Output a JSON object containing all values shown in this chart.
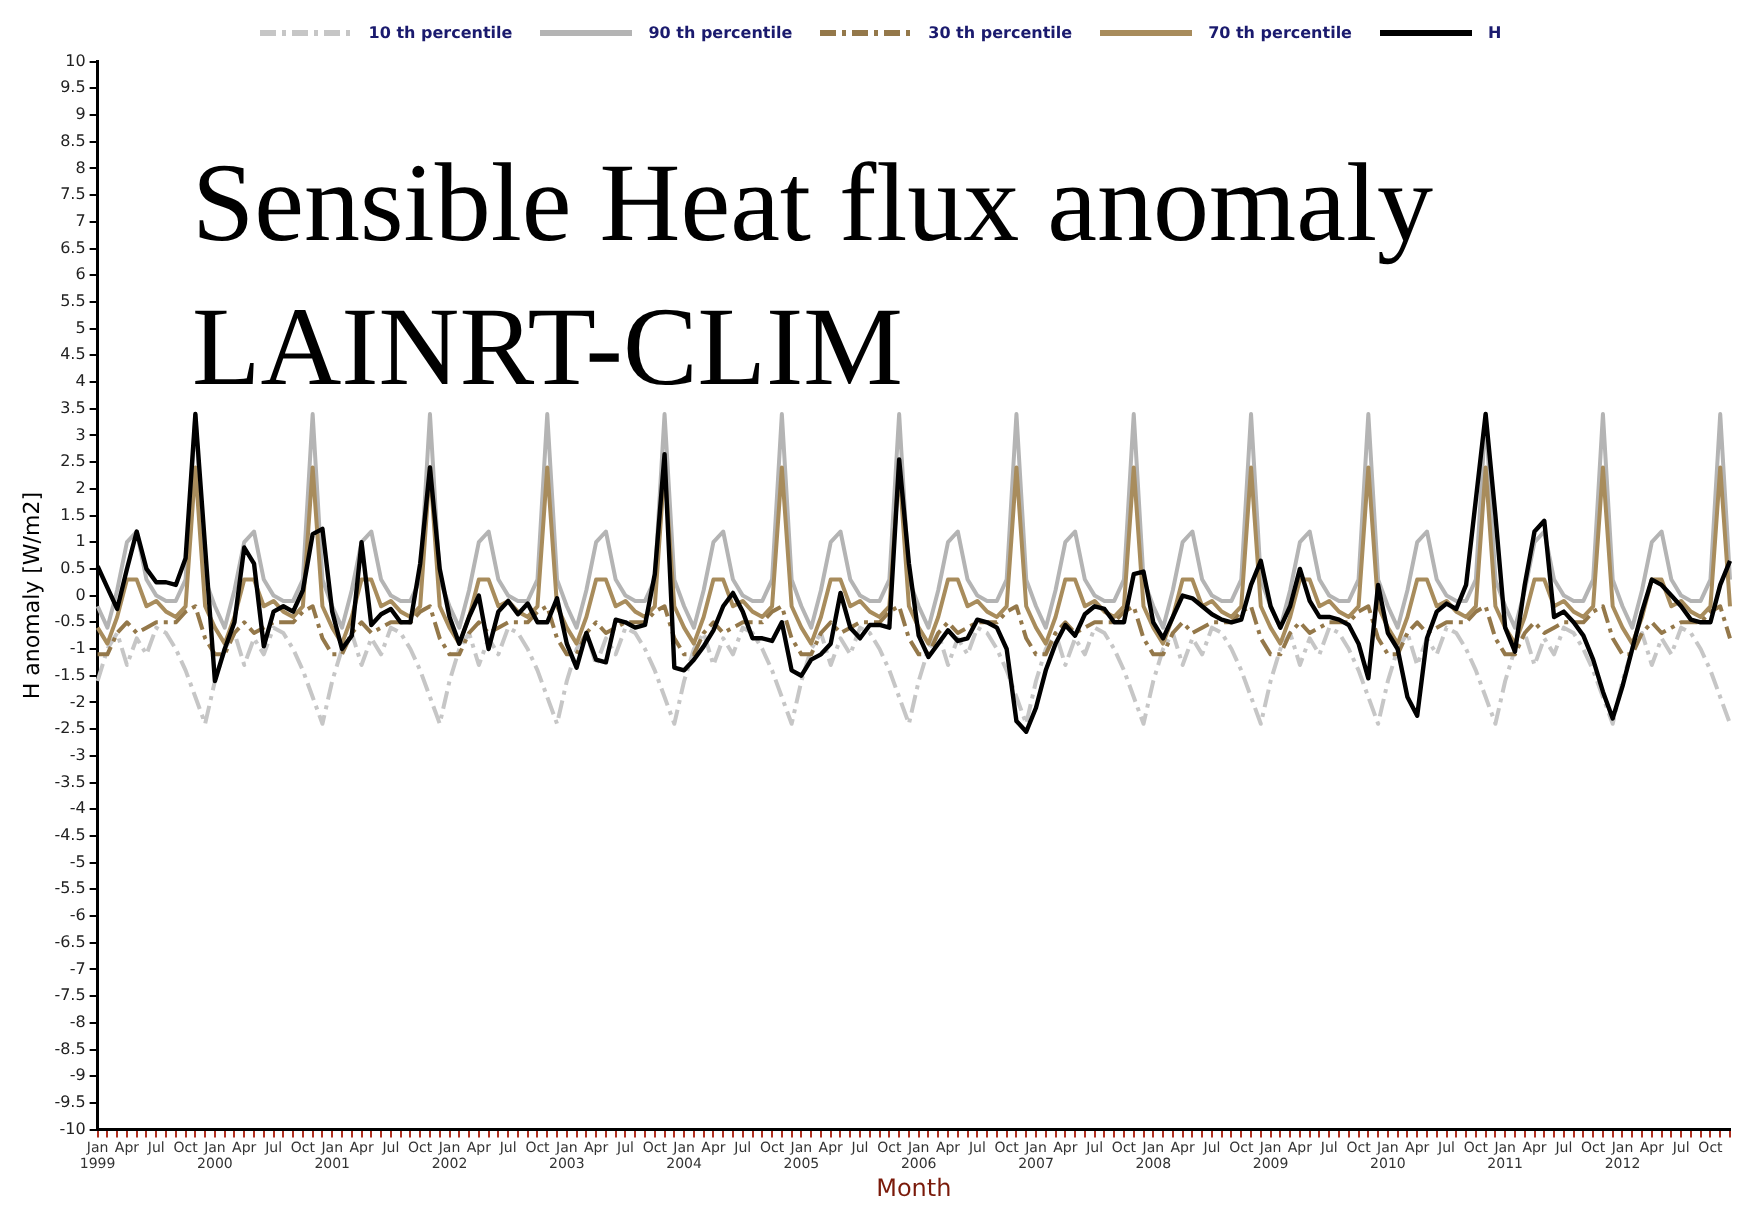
{
  "chart_data": {
    "type": "line",
    "title": "Sensible Heat flux anomaly",
    "subtitle": "LAINRT-CLIM",
    "xlabel": "Month",
    "ylabel": "H anomaly [W/m2]",
    "categories": [
      "Jan 1999",
      null,
      null,
      "Apr",
      null,
      null,
      "Jul",
      null,
      null,
      "Oct",
      null,
      null,
      "Jan 2000",
      null,
      null,
      "Apr",
      null,
      null,
      "Jul",
      null,
      null,
      "Oct",
      null,
      null,
      "Jan 2001",
      null,
      null,
      "Apr",
      null,
      null,
      "Jul",
      null,
      null,
      "Oct",
      null,
      null,
      "Jan 2002",
      null,
      null,
      "Apr",
      null,
      null,
      "Jul",
      null,
      null,
      "Oct",
      null,
      null,
      "Jan 2003",
      null,
      null,
      "Apr",
      null,
      null,
      "Jul",
      null,
      null,
      "Oct",
      null,
      null,
      "Jan 2004",
      null,
      null,
      "Apr",
      null,
      null,
      "Jul",
      null,
      null,
      "Oct",
      null,
      null,
      "Jan 2005",
      null,
      null,
      "Apr",
      null,
      null,
      "Jul",
      null,
      null,
      "Oct",
      null,
      null,
      "Jan 2006",
      null,
      null,
      "Apr",
      null,
      null,
      "Jul",
      null,
      null,
      "Oct",
      null,
      null,
      "Jan 2007",
      null,
      null,
      "Apr",
      null,
      null,
      "Jul",
      null,
      null,
      "Oct",
      null,
      null,
      "Jan 2008",
      null,
      null,
      "Apr",
      null,
      null,
      "Jul",
      null,
      null,
      "Oct",
      null,
      null,
      "Jan 2009",
      null,
      null,
      "Apr",
      null,
      null,
      "Jul",
      null,
      null,
      "Oct",
      null,
      null,
      "Jan 2010",
      null,
      null,
      "Apr",
      null,
      null,
      "Jul",
      null,
      null,
      "Oct",
      null,
      null,
      "Jan 2011",
      null,
      null,
      "Apr",
      null,
      null,
      "Jul",
      null,
      null,
      "Oct",
      null,
      null,
      "Jan 2012",
      null,
      null,
      "Apr",
      null,
      null,
      "Jul",
      null,
      null,
      "Oct",
      null,
      null
    ],
    "series": [
      {
        "name": "10 th percentile",
        "color": "#c6c6c6",
        "line_style": "dashed",
        "values": [
          -1.6,
          -1.0,
          -0.7,
          -1.3,
          -0.8,
          -1.1,
          -0.6,
          -0.7,
          -1.0,
          -1.4,
          -1.9,
          -2.4,
          -1.6,
          -1.0,
          -0.7,
          -1.3,
          -0.8,
          -1.1,
          -0.6,
          -0.7,
          -1.0,
          -1.4,
          -1.9,
          -2.4,
          -1.6,
          -1.0,
          -0.7,
          -1.3,
          -0.8,
          -1.1,
          -0.6,
          -0.7,
          -1.0,
          -1.4,
          -1.9,
          -2.4,
          -1.6,
          -1.0,
          -0.7,
          -1.3,
          -0.8,
          -1.1,
          -0.6,
          -0.7,
          -1.0,
          -1.4,
          -1.9,
          -2.4,
          -1.6,
          -1.0,
          -0.7,
          -1.3,
          -0.8,
          -1.1,
          -0.6,
          -0.7,
          -1.0,
          -1.4,
          -1.9,
          -2.4,
          -1.6,
          -1.0,
          -0.7,
          -1.3,
          -0.8,
          -1.1,
          -0.6,
          -0.7,
          -1.0,
          -1.4,
          -1.9,
          -2.4,
          -1.6,
          -1.0,
          -0.7,
          -1.3,
          -0.8,
          -1.1,
          -0.6,
          -0.7,
          -1.0,
          -1.4,
          -1.9,
          -2.4,
          -1.6,
          -1.0,
          -0.7,
          -1.3,
          -0.8,
          -1.1,
          -0.6,
          -0.7,
          -1.0,
          -1.4,
          -1.9,
          -2.4,
          -1.6,
          -1.0,
          -0.7,
          -1.3,
          -0.8,
          -1.1,
          -0.6,
          -0.7,
          -1.0,
          -1.4,
          -1.9,
          -2.4,
          -1.6,
          -1.0,
          -0.7,
          -1.3,
          -0.8,
          -1.1,
          -0.6,
          -0.7,
          -1.0,
          -1.4,
          -1.9,
          -2.4,
          -1.6,
          -1.0,
          -0.7,
          -1.3,
          -0.8,
          -1.1,
          -0.6,
          -0.7,
          -1.0,
          -1.4,
          -1.9,
          -2.4,
          -1.6,
          -1.0,
          -0.7,
          -1.3,
          -0.8,
          -1.1,
          -0.6,
          -0.7,
          -1.0,
          -1.4,
          -1.9,
          -2.4,
          -1.6,
          -1.0,
          -0.7,
          -1.3,
          -0.8,
          -1.1,
          -0.6,
          -0.7,
          -1.0,
          -1.4,
          -1.9,
          -2.4,
          -1.6,
          -1.0,
          -0.7,
          -1.3,
          -0.8,
          -1.1,
          -0.6,
          -0.7,
          -1.0,
          -1.4,
          -1.9,
          -2.4
        ]
      },
      {
        "name": "90 th percentile",
        "color": "#b4b4b4",
        "line_style": "solid",
        "values": [
          -0.2,
          -0.6,
          0.1,
          1.0,
          1.2,
          0.3,
          0.0,
          -0.1,
          -0.1,
          0.3,
          3.4,
          0.3,
          -0.2,
          -0.6,
          0.1,
          1.0,
          1.2,
          0.3,
          0.0,
          -0.1,
          -0.1,
          0.3,
          3.4,
          0.3,
          -0.2,
          -0.6,
          0.1,
          1.0,
          1.2,
          0.3,
          0.0,
          -0.1,
          -0.1,
          0.3,
          3.4,
          0.3,
          -0.2,
          -0.6,
          0.1,
          1.0,
          1.2,
          0.3,
          0.0,
          -0.1,
          -0.1,
          0.3,
          3.4,
          0.3,
          -0.2,
          -0.6,
          0.1,
          1.0,
          1.2,
          0.3,
          0.0,
          -0.1,
          -0.1,
          0.3,
          3.4,
          0.3,
          -0.2,
          -0.6,
          0.1,
          1.0,
          1.2,
          0.3,
          0.0,
          -0.1,
          -0.1,
          0.3,
          3.4,
          0.3,
          -0.2,
          -0.6,
          0.1,
          1.0,
          1.2,
          0.3,
          0.0,
          -0.1,
          -0.1,
          0.3,
          3.4,
          0.3,
          -0.2,
          -0.6,
          0.1,
          1.0,
          1.2,
          0.3,
          0.0,
          -0.1,
          -0.1,
          0.3,
          3.4,
          0.3,
          -0.2,
          -0.6,
          0.1,
          1.0,
          1.2,
          0.3,
          0.0,
          -0.1,
          -0.1,
          0.3,
          3.4,
          0.3,
          -0.2,
          -0.6,
          0.1,
          1.0,
          1.2,
          0.3,
          0.0,
          -0.1,
          -0.1,
          0.3,
          3.4,
          0.3,
          -0.2,
          -0.6,
          0.1,
          1.0,
          1.2,
          0.3,
          0.0,
          -0.1,
          -0.1,
          0.3,
          3.4,
          0.3,
          -0.2,
          -0.6,
          0.1,
          1.0,
          1.2,
          0.3,
          0.0,
          -0.1,
          -0.1,
          0.3,
          3.4,
          0.3,
          -0.2,
          -0.6,
          0.1,
          1.0,
          1.2,
          0.3,
          0.0,
          -0.1,
          -0.1,
          0.3,
          3.4,
          0.3,
          -0.2,
          -0.6,
          0.1,
          1.0,
          1.2,
          0.3,
          0.0,
          -0.1,
          -0.1,
          0.3,
          3.4,
          0.3
        ]
      },
      {
        "name": "30 th percentile",
        "color": "#94784a",
        "line_style": "dashed",
        "values": [
          -1.1,
          -1.1,
          -0.7,
          -0.5,
          -0.7,
          -0.6,
          -0.5,
          -0.5,
          -0.5,
          -0.3,
          -0.2,
          -0.8,
          -1.1,
          -1.1,
          -0.7,
          -0.5,
          -0.7,
          -0.6,
          -0.5,
          -0.5,
          -0.5,
          -0.3,
          -0.2,
          -0.8,
          -1.1,
          -1.1,
          -0.7,
          -0.5,
          -0.7,
          -0.6,
          -0.5,
          -0.5,
          -0.5,
          -0.3,
          -0.2,
          -0.8,
          -1.1,
          -1.1,
          -0.7,
          -0.5,
          -0.7,
          -0.6,
          -0.5,
          -0.5,
          -0.5,
          -0.3,
          -0.2,
          -0.8,
          -1.1,
          -1.1,
          -0.7,
          -0.5,
          -0.7,
          -0.6,
          -0.5,
          -0.5,
          -0.5,
          -0.3,
          -0.2,
          -0.8,
          -1.1,
          -1.1,
          -0.7,
          -0.5,
          -0.7,
          -0.6,
          -0.5,
          -0.5,
          -0.5,
          -0.3,
          -0.2,
          -0.8,
          -1.1,
          -1.1,
          -0.7,
          -0.5,
          -0.7,
          -0.6,
          -0.5,
          -0.5,
          -0.5,
          -0.3,
          -0.2,
          -0.8,
          -1.1,
          -1.1,
          -0.7,
          -0.5,
          -0.7,
          -0.6,
          -0.5,
          -0.5,
          -0.5,
          -0.3,
          -0.2,
          -0.8,
          -1.1,
          -1.1,
          -0.7,
          -0.5,
          -0.7,
          -0.6,
          -0.5,
          -0.5,
          -0.5,
          -0.3,
          -0.2,
          -0.8,
          -1.1,
          -1.1,
          -0.7,
          -0.5,
          -0.7,
          -0.6,
          -0.5,
          -0.5,
          -0.5,
          -0.3,
          -0.2,
          -0.8,
          -1.1,
          -1.1,
          -0.7,
          -0.5,
          -0.7,
          -0.6,
          -0.5,
          -0.5,
          -0.5,
          -0.3,
          -0.2,
          -0.8,
          -1.1,
          -1.1,
          -0.7,
          -0.5,
          -0.7,
          -0.6,
          -0.5,
          -0.5,
          -0.5,
          -0.3,
          -0.2,
          -0.8,
          -1.1,
          -1.1,
          -0.7,
          -0.5,
          -0.7,
          -0.6,
          -0.5,
          -0.5,
          -0.5,
          -0.3,
          -0.2,
          -0.8,
          -1.1,
          -1.1,
          -0.7,
          -0.5,
          -0.7,
          -0.6,
          -0.5,
          -0.5,
          -0.5,
          -0.3,
          -0.2,
          -0.8
        ]
      },
      {
        "name": "70 th percentile",
        "color": "#a88c5c",
        "line_style": "solid",
        "values": [
          -0.6,
          -0.9,
          -0.4,
          0.3,
          0.3,
          -0.2,
          -0.1,
          -0.3,
          -0.4,
          -0.2,
          2.4,
          -0.2,
          -0.6,
          -0.9,
          -0.4,
          0.3,
          0.3,
          -0.2,
          -0.1,
          -0.3,
          -0.4,
          -0.2,
          2.4,
          -0.2,
          -0.6,
          -0.9,
          -0.4,
          0.3,
          0.3,
          -0.2,
          -0.1,
          -0.3,
          -0.4,
          -0.2,
          2.4,
          -0.2,
          -0.6,
          -0.9,
          -0.4,
          0.3,
          0.3,
          -0.2,
          -0.1,
          -0.3,
          -0.4,
          -0.2,
          2.4,
          -0.2,
          -0.6,
          -0.9,
          -0.4,
          0.3,
          0.3,
          -0.2,
          -0.1,
          -0.3,
          -0.4,
          -0.2,
          2.4,
          -0.2,
          -0.6,
          -0.9,
          -0.4,
          0.3,
          0.3,
          -0.2,
          -0.1,
          -0.3,
          -0.4,
          -0.2,
          2.4,
          -0.2,
          -0.6,
          -0.9,
          -0.4,
          0.3,
          0.3,
          -0.2,
          -0.1,
          -0.3,
          -0.4,
          -0.2,
          2.4,
          -0.2,
          -0.6,
          -0.9,
          -0.4,
          0.3,
          0.3,
          -0.2,
          -0.1,
          -0.3,
          -0.4,
          -0.2,
          2.4,
          -0.2,
          -0.6,
          -0.9,
          -0.4,
          0.3,
          0.3,
          -0.2,
          -0.1,
          -0.3,
          -0.4,
          -0.2,
          2.4,
          -0.2,
          -0.6,
          -0.9,
          -0.4,
          0.3,
          0.3,
          -0.2,
          -0.1,
          -0.3,
          -0.4,
          -0.2,
          2.4,
          -0.2,
          -0.6,
          -0.9,
          -0.4,
          0.3,
          0.3,
          -0.2,
          -0.1,
          -0.3,
          -0.4,
          -0.2,
          2.4,
          -0.2,
          -0.6,
          -0.9,
          -0.4,
          0.3,
          0.3,
          -0.2,
          -0.1,
          -0.3,
          -0.4,
          -0.2,
          2.4,
          -0.2,
          -0.6,
          -0.9,
          -0.4,
          0.3,
          0.3,
          -0.2,
          -0.1,
          -0.3,
          -0.4,
          -0.2,
          2.4,
          -0.2,
          -0.6,
          -0.9,
          -0.4,
          0.3,
          0.3,
          -0.2,
          -0.1,
          -0.3,
          -0.4,
          -0.2,
          2.4,
          -0.2
        ]
      },
      {
        "name": "H",
        "color": "#000000",
        "line_style": "solid",
        "values": [
          0.55,
          0.15,
          -0.25,
          0.5,
          1.2,
          0.5,
          0.25,
          0.25,
          0.2,
          0.7,
          3.4,
          0.9,
          -1.6,
          -1.0,
          -0.5,
          0.9,
          0.6,
          -0.95,
          -0.3,
          -0.2,
          -0.3,
          0.1,
          1.15,
          1.25,
          -0.3,
          -1.0,
          -0.75,
          1.0,
          -0.55,
          -0.35,
          -0.25,
          -0.5,
          -0.5,
          0.6,
          2.4,
          0.5,
          -0.4,
          -0.9,
          -0.4,
          0.0,
          -1.0,
          -0.3,
          -0.1,
          -0.35,
          -0.15,
          -0.5,
          -0.5,
          -0.05,
          -0.9,
          -1.35,
          -0.7,
          -1.2,
          -1.25,
          -0.45,
          -0.5,
          -0.6,
          -0.55,
          0.4,
          2.65,
          -1.35,
          -1.4,
          -1.2,
          -0.95,
          -0.65,
          -0.2,
          0.05,
          -0.3,
          -0.8,
          -0.8,
          -0.85,
          -0.5,
          -1.4,
          -1.5,
          -1.2,
          -1.1,
          -0.9,
          0.05,
          -0.6,
          -0.8,
          -0.55,
          -0.55,
          -0.6,
          2.55,
          0.6,
          -0.75,
          -1.15,
          -0.9,
          -0.65,
          -0.85,
          -0.8,
          -0.45,
          -0.5,
          -0.6,
          -1.0,
          -2.35,
          -2.55,
          -2.1,
          -1.4,
          -0.9,
          -0.55,
          -0.75,
          -0.35,
          -0.2,
          -0.25,
          -0.5,
          -0.5,
          0.4,
          0.45,
          -0.5,
          -0.8,
          -0.4,
          0.0,
          -0.05,
          -0.2,
          -0.35,
          -0.45,
          -0.5,
          -0.45,
          0.2,
          0.65,
          -0.2,
          -0.6,
          -0.2,
          0.5,
          -0.1,
          -0.4,
          -0.4,
          -0.45,
          -0.55,
          -0.9,
          -1.55,
          0.2,
          -0.7,
          -1.0,
          -1.9,
          -2.25,
          -0.8,
          -0.3,
          -0.15,
          -0.25,
          0.2,
          1.8,
          3.4,
          1.5,
          -0.6,
          -1.05,
          0.2,
          1.2,
          1.4,
          -0.4,
          -0.3,
          -0.5,
          -0.75,
          -1.2,
          -1.8,
          -2.3,
          -1.7,
          -1.0,
          -0.3,
          0.3,
          0.2,
          0.0,
          -0.2,
          -0.45,
          -0.5,
          -0.5,
          0.2,
          0.65
        ]
      }
    ],
    "ylim": [
      -10,
      10
    ],
    "yticks": [
      -10,
      -9.5,
      -9,
      -8.5,
      -8,
      -7.5,
      -7,
      -6.5,
      -6,
      -5.5,
      -5,
      -4.5,
      -4,
      -3.5,
      -3,
      -2.5,
      -2,
      -1.5,
      -1,
      -0.5,
      0,
      0.5,
      1,
      1.5,
      2,
      2.5,
      3,
      3.5,
      4,
      4.5,
      5,
      5.5,
      6,
      6.5,
      7,
      7.5,
      8,
      8.5,
      9,
      9.5,
      10
    ],
    "legend": "top",
    "grid": false,
    "marker": "none"
  }
}
